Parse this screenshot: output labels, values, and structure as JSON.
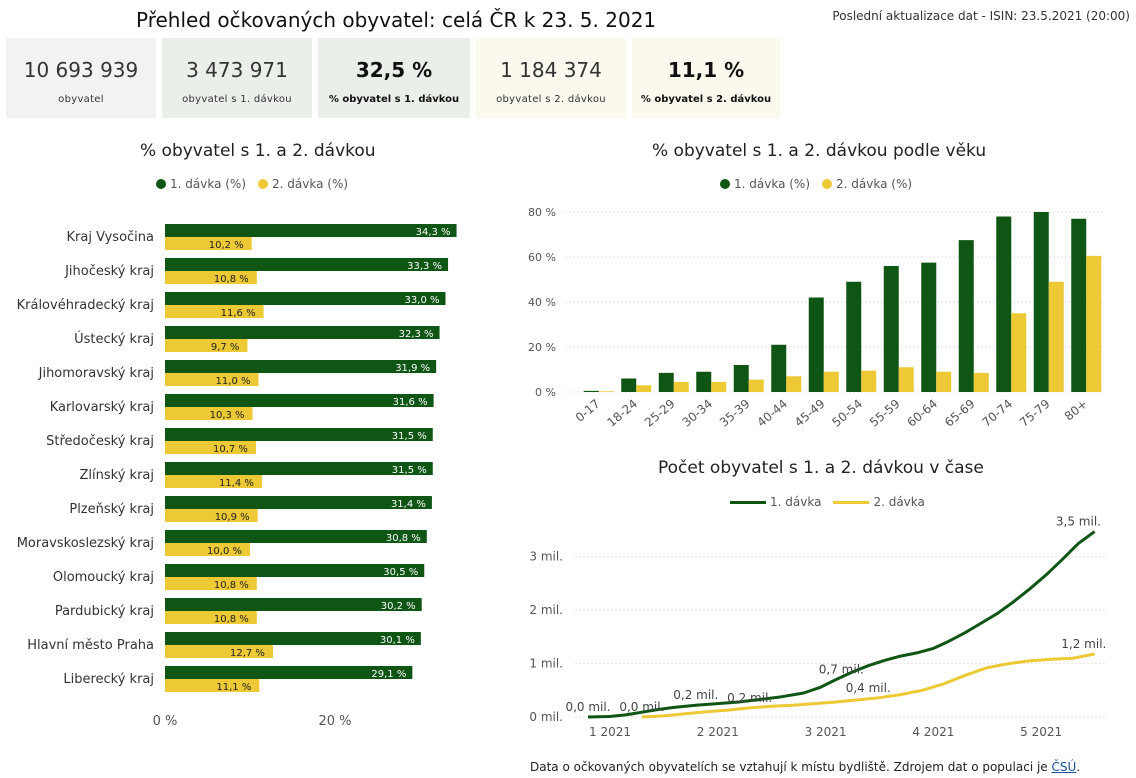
{
  "header": {
    "title": "Přehled očkovaných obyvatel: celá ČR k 23. 5. 2021",
    "update": "Poslední aktualizace dat - ISIN: 23.5.2021 (20:00)"
  },
  "kpis": [
    {
      "value": "10 693 939",
      "label": "obyvatel",
      "bg": "#f1f2f2",
      "bold": false
    },
    {
      "value": "3 473 971",
      "label": "obyvatel s 1. dávkou",
      "bg": "#eaefea",
      "bold": false
    },
    {
      "value": "32,5 %",
      "label": "% obyvatel s 1. dávkou",
      "bg": "#eaefea",
      "bold": true
    },
    {
      "value": "1 184 374",
      "label": "obyvatel s 2. dávkou",
      "bg": "#fbf9ee",
      "bold": false
    },
    {
      "value": "11,1 %",
      "label": "% obyvatel s 2. dávkou",
      "bg": "#fbf9ee",
      "bold": true
    }
  ],
  "colors": {
    "dose1": "#0f5514",
    "dose2": "#ecc935",
    "grid": "#e1e1e1",
    "axis": "#555555"
  },
  "legend": {
    "dose1": "1. dávka (%)",
    "dose2": "2. dávka (%)",
    "line1": "1. dávka",
    "line2": "2. dávka"
  },
  "footer": {
    "text": "Data o očkovaných obyvatelích se vztahují k místu bydliště. Zdrojem dat o populaci je ",
    "link": "ČSÚ",
    "end": "."
  },
  "chart_data": [
    {
      "type": "bar",
      "orientation": "horizontal",
      "title": "% obyvatel s 1. a 2. dávkou",
      "categories": [
        "Kraj Vysočina",
        "Jihočeský kraj",
        "Královéhradecký kraj",
        "Ústecký kraj",
        "Jihomoravský kraj",
        "Karlovarský kraj",
        "Středočeský kraj",
        "Zlínský kraj",
        "Plzeňský kraj",
        "Moravskoslezský kraj",
        "Olomoucký kraj",
        "Pardubický kraj",
        "Hlavní město Praha",
        "Liberecký kraj"
      ],
      "series": [
        {
          "name": "1. dávka (%)",
          "values": [
            34.3,
            33.3,
            33.0,
            32.3,
            31.9,
            31.6,
            31.5,
            31.5,
            31.4,
            30.8,
            30.5,
            30.2,
            30.1,
            29.1
          ],
          "labels": [
            "34,3 %",
            "33,3 %",
            "33,0 %",
            "32,3 %",
            "31,9 %",
            "31,6 %",
            "31,5 %",
            "31,5 %",
            "31,4 %",
            "30,8 %",
            "30,5 %",
            "30,2 %",
            "30,1 %",
            "29,1 %"
          ]
        },
        {
          "name": "2. dávka (%)",
          "values": [
            10.2,
            10.8,
            11.6,
            9.7,
            11.0,
            10.3,
            10.7,
            11.4,
            10.9,
            10.0,
            10.8,
            10.8,
            12.7,
            11.1
          ],
          "labels": [
            "10,2 %",
            "10,8 %",
            "11,6 %",
            "9,7 %",
            "11,0 %",
            "10,3 %",
            "10,7 %",
            "11,4 %",
            "10,9 %",
            "10,0 %",
            "10,8 %",
            "10,8 %",
            "12,7 %",
            "11,1 %"
          ]
        }
      ],
      "xticks": [
        {
          "value": 0,
          "label": "0 %"
        },
        {
          "value": 20,
          "label": "20 %"
        }
      ],
      "xlim": [
        0,
        35
      ]
    },
    {
      "type": "bar",
      "title": "% obyvatel s 1. a 2. dávkou podle věku",
      "categories": [
        "0-17",
        "18-24",
        "25-29",
        "30-34",
        "35-39",
        "40-44",
        "45-49",
        "50-54",
        "55-59",
        "60-64",
        "65-69",
        "70-74",
        "75-79",
        "80+"
      ],
      "series": [
        {
          "name": "1. dávka (%)",
          "values": [
            0.5,
            6.0,
            8.5,
            9.0,
            12.0,
            21.0,
            42.0,
            49.0,
            56.0,
            57.5,
            67.5,
            78.0,
            80.0,
            77.0
          ]
        },
        {
          "name": "2. dávka (%)",
          "values": [
            0.3,
            3.0,
            4.5,
            4.5,
            5.5,
            7.0,
            9.0,
            9.5,
            11.0,
            9.0,
            8.5,
            35.0,
            49.0,
            60.5
          ]
        }
      ],
      "yticks": [
        {
          "value": 0,
          "label": "0 %"
        },
        {
          "value": 20,
          "label": "20 %"
        },
        {
          "value": 40,
          "label": "40 %"
        },
        {
          "value": 60,
          "label": "60 %"
        },
        {
          "value": 80,
          "label": "80 %"
        }
      ],
      "ylim": [
        0,
        80
      ],
      "grid": true
    },
    {
      "type": "line",
      "title": "Počet obyvatel s 1. a 2. dávkou v čase",
      "xticks": [
        {
          "value": 1,
          "label": "1 2021"
        },
        {
          "value": 2,
          "label": "2 2021"
        },
        {
          "value": 3,
          "label": "3 2021"
        },
        {
          "value": 4,
          "label": "4 2021"
        },
        {
          "value": 5,
          "label": "5 2021"
        }
      ],
      "xlim": [
        1,
        5.75
      ],
      "yticks": [
        {
          "value": 0,
          "label": "0 mil."
        },
        {
          "value": 1,
          "label": "1 mil."
        },
        {
          "value": 2,
          "label": "2 mil."
        },
        {
          "value": 3,
          "label": "3 mil."
        }
      ],
      "ylim": [
        0,
        3.5
      ],
      "series": [
        {
          "name": "1. dávka",
          "x": [
            1.0,
            1.2,
            1.35,
            1.5,
            1.65,
            1.8,
            2.0,
            2.2,
            2.4,
            2.6,
            2.8,
            3.0,
            3.15,
            3.3,
            3.45,
            3.6,
            3.75,
            3.9,
            4.05,
            4.2,
            4.35,
            4.5,
            4.65,
            4.8,
            4.95,
            5.1,
            5.25,
            5.4,
            5.55,
            5.7
          ],
          "values": [
            0.0,
            0.01,
            0.04,
            0.09,
            0.14,
            0.18,
            0.22,
            0.25,
            0.28,
            0.33,
            0.38,
            0.45,
            0.55,
            0.7,
            0.84,
            0.96,
            1.06,
            1.14,
            1.2,
            1.28,
            1.42,
            1.58,
            1.76,
            1.94,
            2.16,
            2.4,
            2.66,
            2.95,
            3.25,
            3.47
          ]
        },
        {
          "name": "2. dávka",
          "x": [
            1.5,
            1.7,
            1.9,
            2.1,
            2.3,
            2.5,
            2.7,
            2.9,
            3.1,
            3.3,
            3.5,
            3.7,
            3.9,
            4.1,
            4.3,
            4.5,
            4.7,
            4.9,
            5.1,
            5.3,
            5.5,
            5.7
          ],
          "values": [
            0.0,
            0.02,
            0.06,
            0.1,
            0.13,
            0.17,
            0.2,
            0.22,
            0.25,
            0.28,
            0.32,
            0.36,
            0.42,
            0.5,
            0.62,
            0.78,
            0.92,
            1.0,
            1.05,
            1.08,
            1.1,
            1.18
          ]
        }
      ],
      "annotations": [
        {
          "x": 1.0,
          "y": 0.0,
          "text": "0,0 mil.",
          "series": 0
        },
        {
          "x": 1.5,
          "y": 0.0,
          "text": "0,0 mil.",
          "series": 1
        },
        {
          "x": 2.0,
          "y": 0.22,
          "text": "0,2 mil.",
          "series": 0
        },
        {
          "x": 2.5,
          "y": 0.17,
          "text": "0,2 mil.",
          "series": 1
        },
        {
          "x": 3.35,
          "y": 0.7,
          "text": "0,7 mil.",
          "series": 0
        },
        {
          "x": 3.6,
          "y": 0.36,
          "text": "0,4 mil.",
          "series": 1
        },
        {
          "x": 5.55,
          "y": 3.47,
          "text": "3,5 mil.",
          "series": 0
        },
        {
          "x": 5.6,
          "y": 1.18,
          "text": "1,2 mil.",
          "series": 1
        }
      ]
    }
  ]
}
